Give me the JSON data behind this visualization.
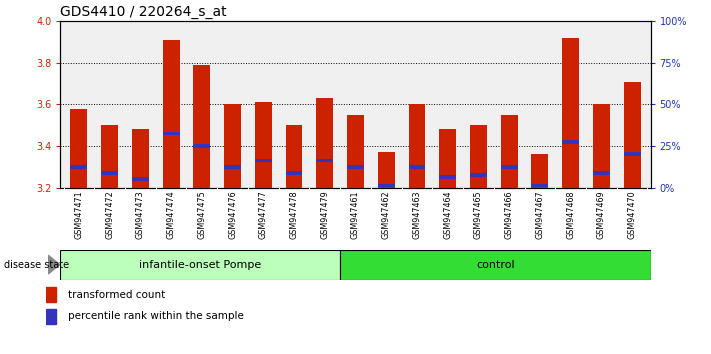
{
  "title": "GDS4410 / 220264_s_at",
  "samples": [
    "GSM947471",
    "GSM947472",
    "GSM947473",
    "GSM947474",
    "GSM947475",
    "GSM947476",
    "GSM947477",
    "GSM947478",
    "GSM947479",
    "GSM947461",
    "GSM947462",
    "GSM947463",
    "GSM947464",
    "GSM947465",
    "GSM947466",
    "GSM947467",
    "GSM947468",
    "GSM947469",
    "GSM947470"
  ],
  "bar_heights": [
    3.58,
    3.5,
    3.48,
    3.91,
    3.79,
    3.6,
    3.61,
    3.5,
    3.63,
    3.55,
    3.37,
    3.6,
    3.48,
    3.5,
    3.55,
    3.36,
    3.92,
    3.6,
    3.71
  ],
  "blue_positions": [
    3.3,
    3.27,
    3.24,
    3.46,
    3.4,
    3.3,
    3.33,
    3.27,
    3.33,
    3.3,
    3.21,
    3.3,
    3.25,
    3.26,
    3.3,
    3.21,
    3.42,
    3.27,
    3.36
  ],
  "baseline": 3.2,
  "ylim": [
    3.2,
    4.0
  ],
  "yticks": [
    3.2,
    3.4,
    3.6,
    3.8,
    4.0
  ],
  "right_yticks": [
    0,
    25,
    50,
    75,
    100
  ],
  "right_ylabels": [
    "0%",
    "25%",
    "50%",
    "75%",
    "100%"
  ],
  "bar_color": "#cc2200",
  "blue_color": "#3333bb",
  "group1_label": "infantile-onset Pompe",
  "group2_label": "control",
  "group1_count": 9,
  "group2_count": 10,
  "group1_color": "#bbffbb",
  "group2_color": "#33dd33",
  "disease_state_label": "disease state",
  "legend1": "transformed count",
  "legend2": "percentile rank within the sample",
  "left_axis_color": "#cc2200",
  "right_axis_color": "#2233bb",
  "bar_width": 0.55,
  "plot_bg_color": "#f0f0f0",
  "title_fontsize": 10,
  "tick_fontsize": 6.5,
  "bar_label_bg": "#d0d0d0"
}
